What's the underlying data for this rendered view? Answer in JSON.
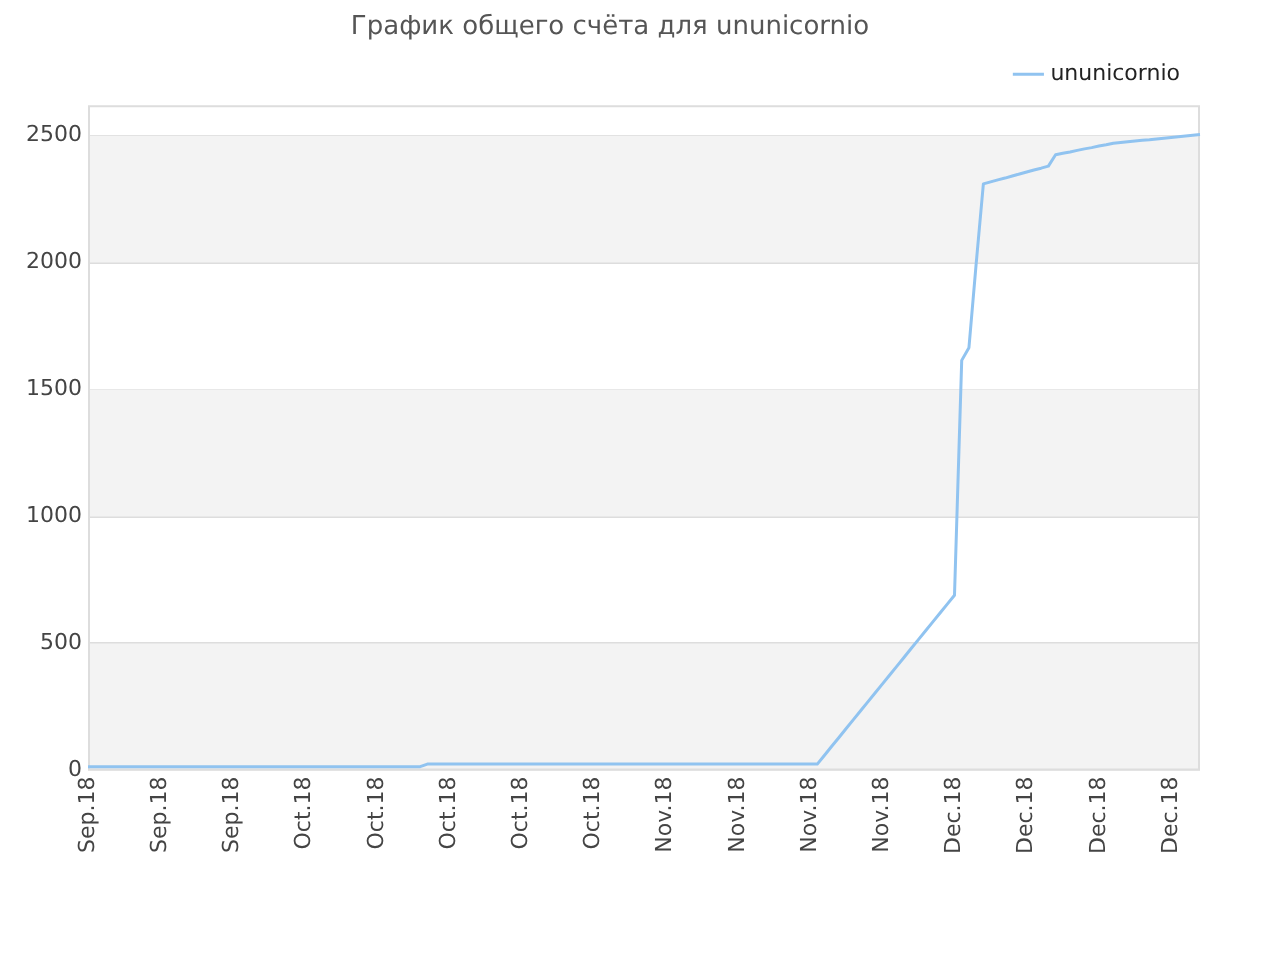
{
  "chart_data": {
    "type": "line",
    "title": "График общего счёта для ununicornio",
    "categories": [
      "Sep.18",
      null,
      null,
      null,
      null,
      null,
      null,
      null,
      null,
      null,
      "Sep.18",
      null,
      null,
      null,
      null,
      null,
      null,
      null,
      null,
      null,
      "Sep.18",
      null,
      null,
      null,
      null,
      null,
      null,
      null,
      null,
      null,
      "Oct.18",
      null,
      null,
      null,
      null,
      null,
      null,
      null,
      null,
      null,
      "Oct.18",
      null,
      null,
      null,
      null,
      null,
      null,
      null,
      null,
      null,
      "Oct.18",
      null,
      null,
      null,
      null,
      null,
      null,
      null,
      null,
      null,
      "Oct.18",
      null,
      null,
      null,
      null,
      null,
      null,
      null,
      null,
      null,
      "Oct.18",
      null,
      null,
      null,
      null,
      null,
      null,
      null,
      null,
      null,
      "Nov.18",
      null,
      null,
      null,
      null,
      null,
      null,
      null,
      null,
      null,
      "Nov.18",
      null,
      null,
      null,
      null,
      null,
      null,
      null,
      null,
      null,
      "Nov.18",
      null,
      null,
      null,
      null,
      null,
      null,
      null,
      null,
      null,
      "Nov.18",
      null,
      null,
      null,
      null,
      null,
      null,
      null,
      null,
      null,
      "Dec.18",
      null,
      null,
      null,
      null,
      null,
      null,
      null,
      null,
      null,
      "Dec.18",
      null,
      null,
      null,
      null,
      null,
      null,
      null,
      null,
      null,
      "Dec.18",
      null,
      null,
      null,
      null,
      null,
      null,
      null,
      null,
      null,
      "Dec.18",
      null,
      null,
      null,
      null
    ],
    "series": [
      {
        "name": "ununicornio",
        "color": "#90c3f0",
        "values": [
          15,
          15,
          15,
          15,
          15,
          15,
          15,
          15,
          15,
          15,
          15,
          15,
          15,
          15,
          15,
          15,
          15,
          15,
          15,
          15,
          15,
          15,
          15,
          15,
          15,
          15,
          15,
          15,
          15,
          15,
          15,
          15,
          15,
          15,
          15,
          15,
          15,
          15,
          15,
          15,
          15,
          15,
          15,
          15,
          15,
          15,
          15,
          25,
          25,
          25,
          25,
          25,
          25,
          25,
          25,
          25,
          25,
          25,
          25,
          25,
          25,
          25,
          25,
          25,
          25,
          25,
          25,
          25,
          25,
          25,
          25,
          25,
          25,
          25,
          25,
          25,
          25,
          25,
          25,
          25,
          25,
          25,
          25,
          25,
          25,
          25,
          25,
          25,
          25,
          25,
          25,
          25,
          25,
          25,
          25,
          25,
          25,
          25,
          25,
          25,
          25,
          25,
          60,
          95,
          130,
          165,
          200,
          235,
          270,
          305,
          340,
          375,
          410,
          445,
          480,
          515,
          550,
          585,
          620,
          655,
          690,
          1615,
          1665,
          1995,
          2310,
          2318,
          2326,
          2333,
          2341,
          2349,
          2357,
          2365,
          2372,
          2380,
          2425,
          2431,
          2436,
          2442,
          2448,
          2453,
          2459,
          2464,
          2470,
          2473,
          2476,
          2479,
          2482,
          2484,
          2487,
          2490,
          2493,
          2496,
          2499,
          2502,
          2505
        ]
      }
    ],
    "ylim": [
      0,
      2620
    ],
    "yticks": [
      0,
      500,
      1000,
      1500,
      2000,
      2500
    ],
    "grid": "y",
    "legend": "top right",
    "marker": "none",
    "line_style": "solid"
  }
}
